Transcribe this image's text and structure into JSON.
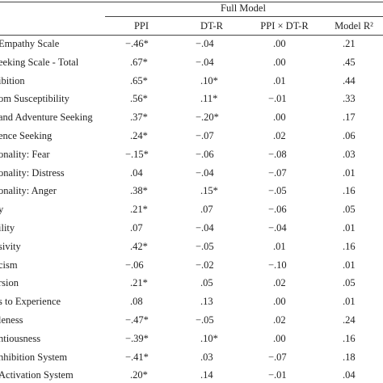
{
  "table": {
    "group_header": "Full Model",
    "columns": [
      "PPI",
      "DT-R",
      "PPI × DT-R",
      "Model R²"
    ],
    "rows": [
      [
        "Empathy Scale",
        "−.46*",
        "−.04",
        ".00",
        ".21"
      ],
      [
        "eeking Scale - Total",
        ".67*",
        "−.04",
        ".00",
        ".45"
      ],
      [
        "ibition",
        ".65*",
        ".10*",
        ".01",
        ".44"
      ],
      [
        "om Susceptibility",
        ".56*",
        ".11*",
        "−.01",
        ".33"
      ],
      [
        "and Adventure Seeking",
        ".37*",
        "−.20*",
        ".00",
        ".17"
      ],
      [
        "ence Seeking",
        ".24*",
        "−.07",
        ".02",
        ".06"
      ],
      [
        "onality: Fear",
        "−.15*",
        "−.06",
        "−.08",
        ".03"
      ],
      [
        "onality: Distress",
        ".04",
        "−.04",
        "−.07",
        ".01"
      ],
      [
        "onality: Anger",
        ".38*",
        ".15*",
        "−.05",
        ".16"
      ],
      [
        "y",
        ".21*",
        ".07",
        "−.06",
        ".05"
      ],
      [
        "ility",
        ".07",
        "−.04",
        "−.04",
        ".01"
      ],
      [
        "sivity",
        ".42*",
        "−.05",
        ".01",
        ".16"
      ],
      [
        "cism",
        "−.06",
        "−.02",
        "−.10",
        ".01"
      ],
      [
        "rsion",
        ".21*",
        ".05",
        ".02",
        ".05"
      ],
      [
        "s to Experience",
        ".08",
        ".13",
        ".00",
        ".01"
      ],
      [
        "leness",
        "−.47*",
        "−.05",
        ".02",
        ".24"
      ],
      [
        "ntiousness",
        "−.39*",
        ".10*",
        ".00",
        ".16"
      ],
      [
        "nhibition System",
        "−.41*",
        ".03",
        "−.07",
        ".18"
      ],
      [
        "Activation System",
        ".20*",
        ".14",
        "−.01",
        ".04"
      ]
    ]
  }
}
